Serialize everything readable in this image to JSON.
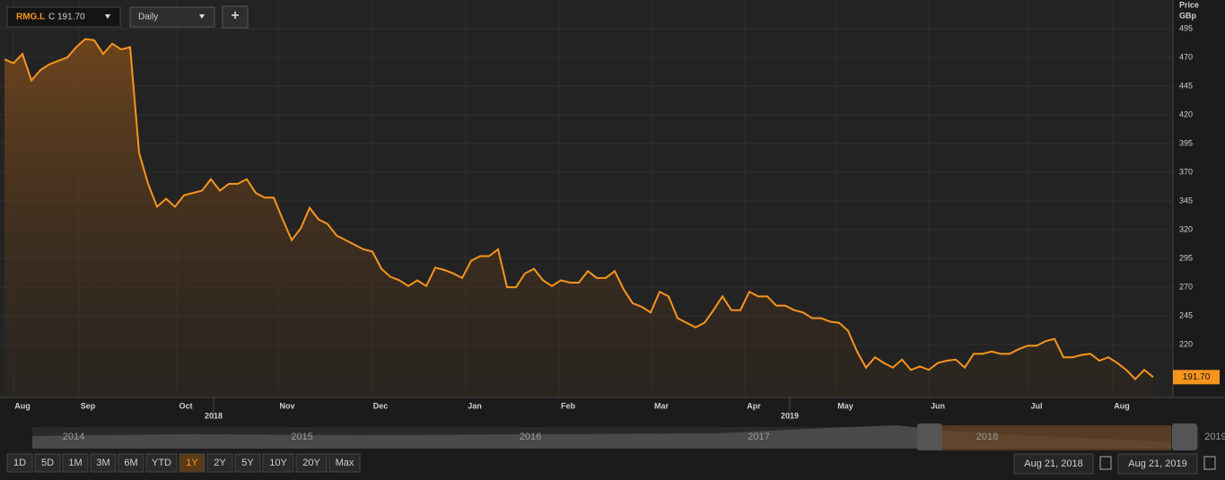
{
  "toolbar": {
    "symbol": "RMG.L",
    "quote": "C 191.70",
    "interval": "Daily",
    "add": "+"
  },
  "chart_data": {
    "type": "line",
    "axis_title": [
      "Price",
      "GBp"
    ],
    "color": "#f7941d",
    "values": [
      468.4,
      465,
      473,
      450,
      459,
      464,
      467,
      470,
      479,
      486,
      485,
      473,
      482,
      477,
      479,
      387,
      360,
      340,
      347,
      340,
      350,
      352,
      354,
      364,
      354,
      360,
      360,
      364,
      352,
      348,
      348,
      329,
      311,
      321,
      339,
      329,
      325,
      315,
      311,
      307,
      303,
      301,
      286,
      279,
      276,
      271,
      276,
      271,
      287,
      285,
      282,
      278,
      293,
      297,
      297,
      303,
      270,
      270,
      282,
      286,
      276,
      271,
      276,
      274,
      274,
      284,
      278,
      278,
      284,
      268,
      256,
      253,
      248,
      266,
      262,
      243,
      239,
      235,
      239,
      250,
      262,
      250,
      250,
      266,
      262,
      262,
      254,
      254,
      250,
      248,
      243,
      243,
      240,
      239,
      232,
      214,
      200,
      209,
      204,
      200,
      207,
      198,
      201,
      198,
      204,
      206,
      207,
      200,
      212,
      212,
      214,
      212,
      212,
      216,
      219,
      219,
      223,
      225,
      209,
      209,
      211,
      212,
      206,
      209,
      204,
      198,
      190,
      198,
      191.7
    ],
    "xticks": [
      {
        "value": 2,
        "label": "Aug"
      },
      {
        "value": 9.3,
        "label": "Sep"
      },
      {
        "value": 20.2,
        "label": "Oct"
      },
      {
        "value": 31.5,
        "label": "Nov"
      },
      {
        "value": 41.9,
        "label": "Dec"
      },
      {
        "value": 52.4,
        "label": "Jan"
      },
      {
        "value": 62.8,
        "label": "Feb"
      },
      {
        "value": 73.2,
        "label": "Mar"
      },
      {
        "value": 83.5,
        "label": "Apr"
      },
      {
        "value": 93.7,
        "label": "May"
      },
      {
        "value": 104,
        "label": "Jun"
      },
      {
        "value": 115,
        "label": "Jul"
      },
      {
        "value": 124.5,
        "label": "Aug"
      }
    ],
    "year_ticks": [
      {
        "value": 23.3,
        "label": "2018"
      },
      {
        "value": 87.5,
        "label": "2019"
      }
    ],
    "ylim": [
      174,
      520
    ],
    "yticks": [
      220,
      245,
      270,
      295,
      320,
      345,
      370,
      395,
      420,
      445,
      470,
      495
    ],
    "grid": true,
    "close": {
      "value": 191.7,
      "label": "191.70"
    }
  },
  "navigator": {
    "years": [
      "2014",
      "2015",
      "2016",
      "2017",
      "2018",
      "2019"
    ]
  },
  "range_buttons": [
    "1D",
    "5D",
    "1M",
    "3M",
    "6M",
    "YTD",
    "1Y",
    "2Y",
    "5Y",
    "10Y",
    "20Y",
    "Max"
  ],
  "date_range": {
    "from": "Aug 21, 2018",
    "to": "Aug 21, 2019"
  }
}
